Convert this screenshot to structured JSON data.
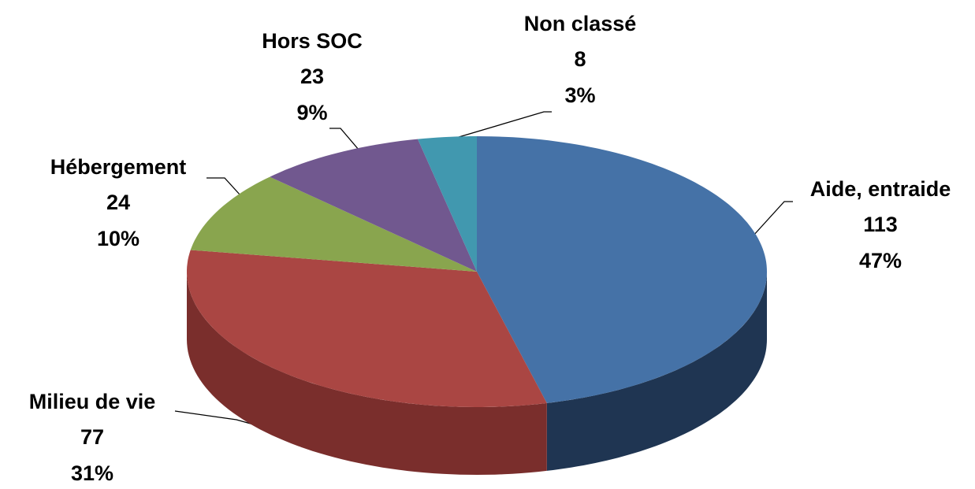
{
  "chart_data": {
    "type": "pie3d",
    "categories": [
      "Aide, entraide",
      "Milieu de vie",
      "Hébergement",
      "Hors SOC",
      "Non classé"
    ],
    "values": [
      113,
      77,
      24,
      23,
      8
    ],
    "percent_labels": [
      "47%",
      "31%",
      "10%",
      "9%",
      "3%"
    ],
    "colors": [
      "#4572a7",
      "#aa4643",
      "#89a54e",
      "#71588f",
      "#4198af"
    ],
    "side_colors": [
      "#1f3552",
      "#7a2e2c",
      "#5a6d33",
      "#4a3a5e",
      "#2a6473"
    ]
  }
}
